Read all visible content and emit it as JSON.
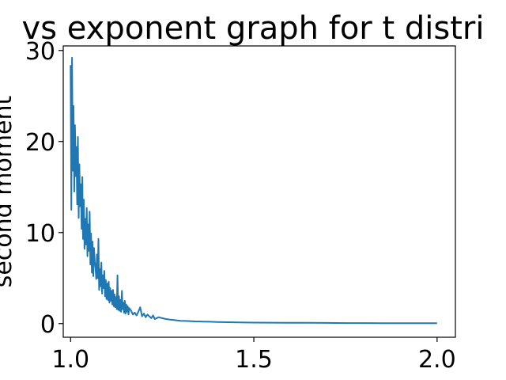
{
  "chart_data": {
    "type": "line",
    "title": "vs exponent graph for t distri",
    "xlabel": "",
    "ylabel": "second moment",
    "xlim": [
      0.98,
      2.05
    ],
    "ylim": [
      -1.5,
      30.5
    ],
    "grid": false,
    "legend": "none",
    "x_ticks": [
      "1.0",
      "1.5",
      "2.0"
    ],
    "x_tick_values": [
      1.0,
      1.5,
      2.0
    ],
    "y_ticks": [
      "0",
      "10",
      "20",
      "30"
    ],
    "y_tick_values": [
      0,
      10,
      20,
      30
    ],
    "series": [
      {
        "color": "#1f77b4",
        "x": [
          1.0,
          1.002,
          1.004,
          1.006,
          1.008,
          1.01,
          1.012,
          1.014,
          1.016,
          1.018,
          1.02,
          1.022,
          1.024,
          1.026,
          1.028,
          1.03,
          1.032,
          1.034,
          1.036,
          1.038,
          1.04,
          1.042,
          1.044,
          1.046,
          1.048,
          1.05,
          1.052,
          1.054,
          1.056,
          1.058,
          1.06,
          1.062,
          1.064,
          1.066,
          1.068,
          1.07,
          1.072,
          1.074,
          1.076,
          1.078,
          1.08,
          1.082,
          1.084,
          1.086,
          1.088,
          1.09,
          1.092,
          1.094,
          1.096,
          1.098,
          1.1,
          1.102,
          1.104,
          1.106,
          1.108,
          1.11,
          1.112,
          1.114,
          1.116,
          1.118,
          1.12,
          1.122,
          1.124,
          1.126,
          1.128,
          1.13,
          1.132,
          1.134,
          1.136,
          1.138,
          1.14,
          1.142,
          1.144,
          1.146,
          1.148,
          1.15,
          1.152,
          1.154,
          1.156,
          1.158,
          1.16,
          1.165,
          1.17,
          1.175,
          1.18,
          1.185,
          1.19,
          1.195,
          1.2,
          1.205,
          1.21,
          1.215,
          1.22,
          1.225,
          1.23,
          1.24,
          1.25,
          1.26,
          1.27,
          1.28,
          1.29,
          1.3,
          1.32,
          1.34,
          1.36,
          1.38,
          1.4,
          1.43,
          1.46,
          1.5,
          1.55,
          1.6,
          1.65,
          1.7,
          1.75,
          1.8,
          1.85,
          1.9,
          1.95,
          2.0
        ],
        "y": [
          28.4,
          12.5,
          29.2,
          16.8,
          23.9,
          14.5,
          21.8,
          16.2,
          19.4,
          13.1,
          20.5,
          11.6,
          17.5,
          12.9,
          15.3,
          10.4,
          16.1,
          9.3,
          13.6,
          8.2,
          11.5,
          8.7,
          12.7,
          7.4,
          10.9,
          8.0,
          12.3,
          6.5,
          9.9,
          5.6,
          9.0,
          5.2,
          8.3,
          6.8,
          6.1,
          4.9,
          7.6,
          5.0,
          9.3,
          3.7,
          6.0,
          4.1,
          6.7,
          3.3,
          5.3,
          3.9,
          5.8,
          3.0,
          4.8,
          2.7,
          4.4,
          2.6,
          4.6,
          2.3,
          3.9,
          2.5,
          3.6,
          2.1,
          3.7,
          1.9,
          3.2,
          1.8,
          2.9,
          1.6,
          5.3,
          1.5,
          3.0,
          1.4,
          2.6,
          1.3,
          3.6,
          1.6,
          2.3,
          1.2,
          2.5,
          1.1,
          2.1,
          1.3,
          1.9,
          1.0,
          1.7,
          1.4,
          1.0,
          1.2,
          0.9,
          1.3,
          1.8,
          0.8,
          1.1,
          0.7,
          1.0,
          0.8,
          0.6,
          0.9,
          0.5,
          0.7,
          0.6,
          0.5,
          0.45,
          0.4,
          0.35,
          0.3,
          0.28,
          0.24,
          0.22,
          0.2,
          0.18,
          0.15,
          0.13,
          0.11,
          0.1,
          0.09,
          0.08,
          0.07,
          0.06,
          0.06,
          0.05,
          0.05,
          0.05,
          0.04
        ]
      }
    ]
  }
}
